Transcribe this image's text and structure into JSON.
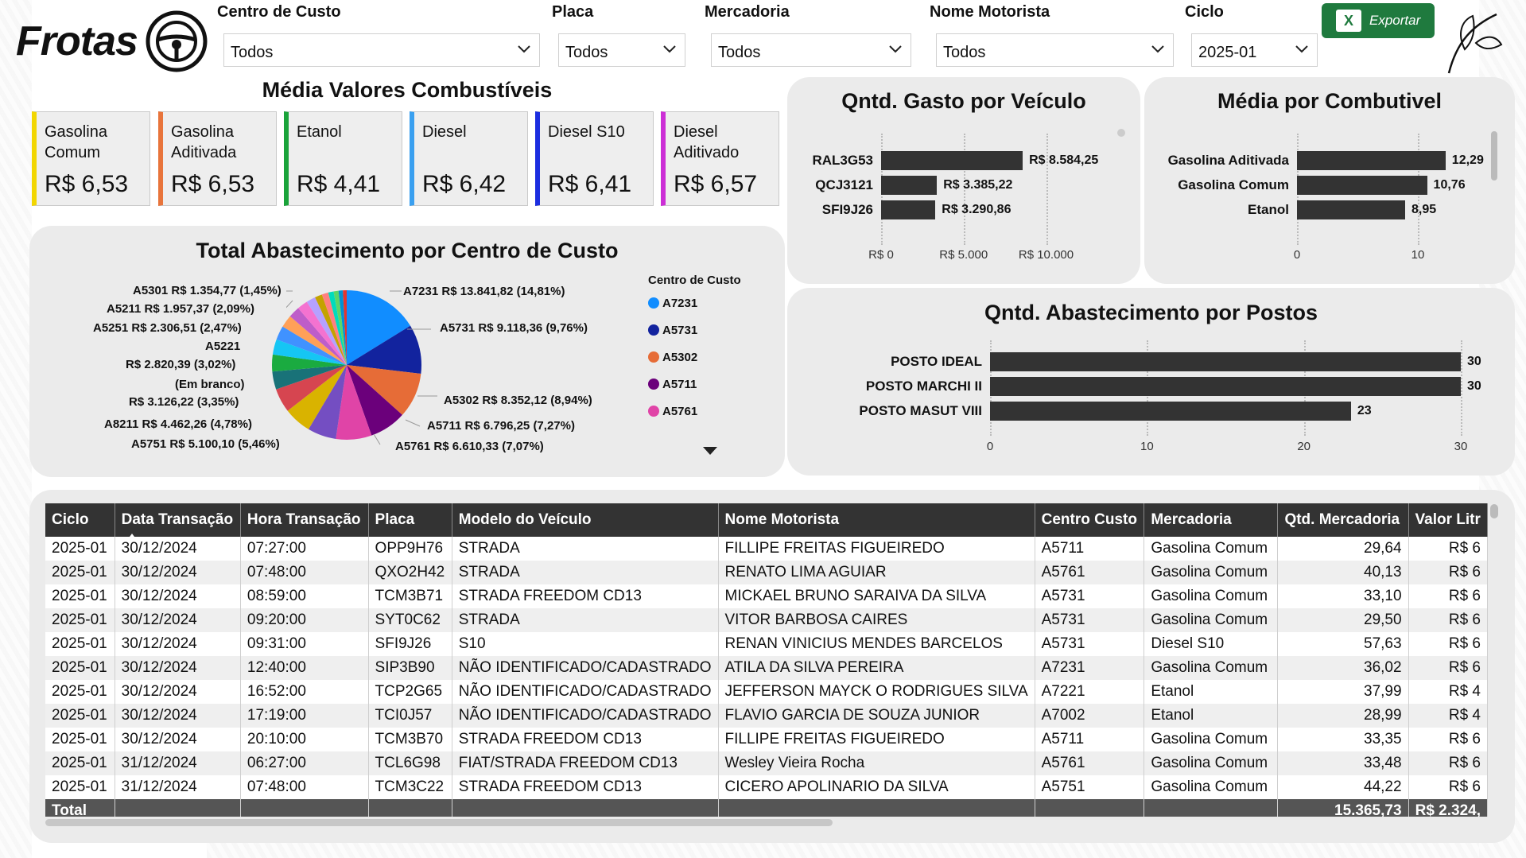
{
  "header": {
    "logo_text": "Frotas",
    "export_label": "Exportar"
  },
  "filters": [
    {
      "label": "Centro de Custo",
      "value": "Todos"
    },
    {
      "label": "Placa",
      "value": "Todos"
    },
    {
      "label": "Mercadoria",
      "value": "Todos"
    },
    {
      "label": "Nome Motorista",
      "value": "Todos"
    },
    {
      "label": "Ciclo",
      "value": "2025-01"
    }
  ],
  "fuel_cards": {
    "title": "Média Valores Combustíveis",
    "items": [
      {
        "name": "Gasolina Comum",
        "value": "R$ 6,53",
        "color": "#f2d600"
      },
      {
        "name": "Gasolina Aditivada",
        "value": "R$ 6,53",
        "color": "#e8743b"
      },
      {
        "name": "Etanol",
        "value": "R$ 4,41",
        "color": "#1aa33a"
      },
      {
        "name": "Diesel",
        "value": "R$ 6,42",
        "color": "#3aa0f0"
      },
      {
        "name": "Diesel S10",
        "value": "R$ 6,41",
        "color": "#1c2ee0"
      },
      {
        "name": "Diesel Aditivado",
        "value": "R$ 6,57",
        "color": "#cc2fd6"
      }
    ]
  },
  "chart_data": [
    {
      "type": "pie",
      "title": "Total Abastecimento por Centro de Custo",
      "legend_title": "Centro de Custo",
      "legend": [
        "A7231",
        "A5731",
        "A5302",
        "A5711",
        "A5761"
      ],
      "labels": {
        "a7231": "A7231 R$ 13.841,82 (14,81%)",
        "a5731": "A5731 R$ 9.118,36 (9,76%)",
        "a5302": "A5302 R$ 8.352,12 (8,94%)",
        "a5711": "A5711 R$ 6.796,25 (7,27%)",
        "a5761": "A5761 R$ 6.610,33 (7,07%)",
        "a5751": "A5751 R$ 5.100,10 (5,46%)",
        "a8211": "A8211 R$ 4.462,26 (4,78%)",
        "branco_name": "(Em branco)",
        "branco_value": "R$ 3.126,22 (3,35%)",
        "a5221_name": "A5221",
        "a5221_value": "R$ 2.820,39 (3,02%)",
        "a5251": "A5251 R$ 2.306,51 (2,47%)",
        "a5211": "A5211 R$ 1.957,37 (2,09%)",
        "a5301": "A5301 R$ 1.354,77 (1,45%)"
      },
      "slices": [
        {
          "name": "A7231",
          "value": 13841.82,
          "color": "#118dff"
        },
        {
          "name": "A5731",
          "value": 9118.36,
          "color": "#12239e"
        },
        {
          "name": "A5302",
          "value": 8352.12,
          "color": "#e66c37"
        },
        {
          "name": "A5711",
          "value": 6796.25,
          "color": "#6b007b"
        },
        {
          "name": "A5761",
          "value": 6610.33,
          "color": "#e044a7"
        },
        {
          "name": "",
          "value": 5300,
          "color": "#744ec2"
        },
        {
          "name": "A5751",
          "value": 5100.1,
          "color": "#d9b300"
        },
        {
          "name": "A8211",
          "value": 4462.26,
          "color": "#d64550"
        },
        {
          "name": "",
          "value": 3300,
          "color": "#197278"
        },
        {
          "name": "(Em branco)",
          "value": 3126.22,
          "color": "#1aab40"
        },
        {
          "name": "A5221",
          "value": 2820.39,
          "color": "#15c6f4"
        },
        {
          "name": "",
          "value": 2600,
          "color": "#4092ff"
        },
        {
          "name": "A5251",
          "value": 2306.51,
          "color": "#ffa058"
        },
        {
          "name": "",
          "value": 2100,
          "color": "#be5dc9"
        },
        {
          "name": "A5211",
          "value": 1957.37,
          "color": "#f472d0"
        },
        {
          "name": "",
          "value": 1700,
          "color": "#b5a1ff"
        },
        {
          "name": "A5301",
          "value": 1354.77,
          "color": "#c4a200"
        },
        {
          "name": "",
          "value": 1200,
          "color": "#ff8080"
        },
        {
          "name": "",
          "value": 1000,
          "color": "#00dbbc"
        },
        {
          "name": "",
          "value": 900,
          "color": "#5bd667"
        },
        {
          "name": "",
          "value": 800,
          "color": "#0091d5"
        },
        {
          "name": "",
          "value": 700,
          "color": "#e3342f"
        }
      ]
    },
    {
      "type": "bar",
      "title": "Qntd. Gasto por Veículo",
      "categories": [
        "RAL3G53",
        "QCJ3121",
        "SFI9J26"
      ],
      "values": [
        8584.25,
        3385.22,
        3290.86
      ],
      "value_labels": [
        "R$ 8.584,25",
        "R$ 3.385,22",
        "R$ 3.290,86"
      ],
      "xlim": [
        0,
        12000
      ],
      "ticks": [
        0,
        5000,
        10000
      ],
      "tick_labels": [
        "R$ 0",
        "R$ 5.000",
        "R$ 10.000"
      ]
    },
    {
      "type": "bar",
      "title": "Média por Combutivel",
      "categories": [
        "Gasolina Aditivada",
        "Gasolina Comum",
        "Etanol"
      ],
      "values": [
        12.29,
        10.76,
        8.95
      ],
      "value_labels": [
        "12,29",
        "10,76",
        "8,95"
      ],
      "xlim": [
        0,
        15
      ],
      "ticks": [
        0,
        10
      ],
      "tick_labels": [
        "0",
        "10"
      ]
    },
    {
      "type": "bar",
      "title": "Qntd. Abastecimento por Postos",
      "categories": [
        "POSTO IDEAL",
        "POSTO MARCHI II",
        "POSTO MASUT VIII"
      ],
      "values": [
        30,
        30,
        23
      ],
      "value_labels": [
        "30",
        "30",
        "23"
      ],
      "xlim": [
        0,
        30
      ],
      "ticks": [
        0,
        10,
        20,
        30
      ],
      "tick_labels": [
        "0",
        "10",
        "20",
        "30"
      ]
    }
  ],
  "table": {
    "columns": [
      "Ciclo",
      "Data Transação",
      "Hora Transação",
      "Placa",
      "Modelo do Veículo",
      "Nome Motorista",
      "Centro Custo",
      "Mercadoria",
      "Qtd. Mercadoria",
      "Valor Litr"
    ],
    "rows": [
      [
        "2025-01",
        "30/12/2024",
        "07:27:00",
        "OPP9H76",
        "STRADA",
        "FILLIPE FREITAS FIGUEIREDO",
        "A5711",
        "Gasolina Comum",
        "29,64",
        "R$ 6"
      ],
      [
        "2025-01",
        "30/12/2024",
        "07:48:00",
        "QXO2H42",
        "STRADA",
        "RENATO LIMA AGUIAR",
        "A5761",
        "Gasolina Comum",
        "40,13",
        "R$ 6"
      ],
      [
        "2025-01",
        "30/12/2024",
        "08:59:00",
        "TCM3B71",
        "STRADA FREEDOM CD13",
        "MICKAEL BRUNO SARAIVA DA SILVA",
        "A5731",
        "Gasolina Comum",
        "33,10",
        "R$ 6"
      ],
      [
        "2025-01",
        "30/12/2024",
        "09:20:00",
        "SYT0C62",
        "STRADA",
        "VITOR BARBOSA CAIRES",
        "A5731",
        "Gasolina Comum",
        "29,50",
        "R$ 6"
      ],
      [
        "2025-01",
        "30/12/2024",
        "09:31:00",
        "SFI9J26",
        "S10",
        "RENAN VINICIUS MENDES BARCELOS",
        "A5731",
        "Diesel S10",
        "57,63",
        "R$ 6"
      ],
      [
        "2025-01",
        "30/12/2024",
        "12:40:00",
        "SIP3B90",
        "NÃO IDENTIFICADO/CADASTRADO",
        "ATILA DA SILVA PEREIRA",
        "A7231",
        "Gasolina Comum",
        "36,02",
        "R$ 6"
      ],
      [
        "2025-01",
        "30/12/2024",
        "16:52:00",
        "TCP2G65",
        "NÃO IDENTIFICADO/CADASTRADO",
        "JEFFERSON MAYCK O RODRIGUES SILVA",
        "A7221",
        "Etanol",
        "37,99",
        "R$ 4"
      ],
      [
        "2025-01",
        "30/12/2024",
        "17:19:00",
        "TCI0J57",
        "NÃO IDENTIFICADO/CADASTRADO",
        "FLAVIO GARCIA DE SOUZA JUNIOR",
        "A7002",
        "Etanol",
        "28,99",
        "R$ 4"
      ],
      [
        "2025-01",
        "30/12/2024",
        "20:10:00",
        "TCM3B70",
        "STRADA FREEDOM CD13",
        "FILLIPE FREITAS FIGUEIREDO",
        "A5711",
        "Gasolina Comum",
        "33,35",
        "R$ 6"
      ],
      [
        "2025-01",
        "31/12/2024",
        "06:27:00",
        "TCL6G98",
        "FIAT/STRADA FREEDOM CD13",
        "Wesley Vieira Rocha",
        "A5761",
        "Gasolina Comum",
        "33,48",
        "R$ 6"
      ],
      [
        "2025-01",
        "31/12/2024",
        "07:48:00",
        "TCM3C22",
        "STRADA FREEDOM CD13",
        "CICERO APOLINARIO DA SILVA",
        "A5751",
        "Gasolina Comum",
        "44,22",
        "R$ 6"
      ]
    ],
    "total": {
      "label": "Total",
      "qtd": "15.365,73",
      "valor": "R$ 2.324,"
    }
  }
}
